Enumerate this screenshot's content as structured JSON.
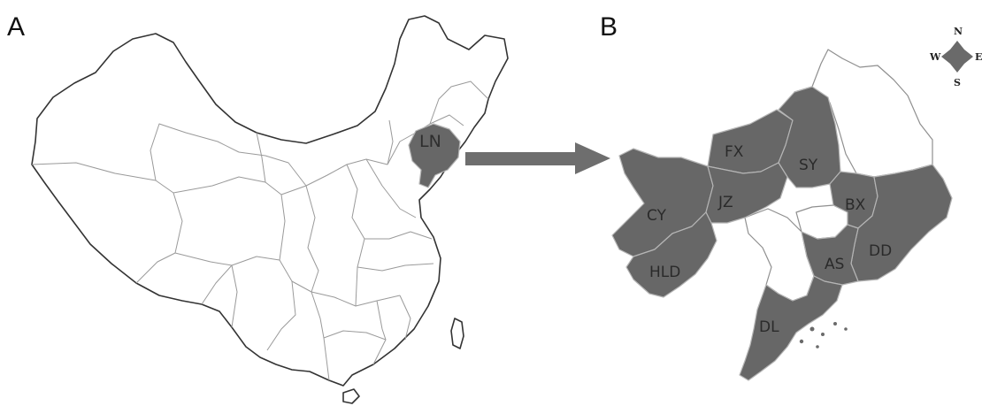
{
  "panels": {
    "a": {
      "letter": "A",
      "highlight_label": "LN"
    },
    "b": {
      "letter": "B"
    }
  },
  "regions": [
    {
      "code": "FX",
      "shaded": true
    },
    {
      "code": "SY",
      "shaded": true
    },
    {
      "code": "CY",
      "shaded": true
    },
    {
      "code": "JZ",
      "shaded": true
    },
    {
      "code": "BX",
      "shaded": true
    },
    {
      "code": "DD",
      "shaded": true
    },
    {
      "code": "HLD",
      "shaded": true
    },
    {
      "code": "AS",
      "shaded": true
    },
    {
      "code": "DL",
      "shaded": true
    }
  ],
  "compass": {
    "north": "N",
    "east": "E",
    "south": "S",
    "west": "W"
  },
  "colors": {
    "shaded": "#676767",
    "arrow": "#6e6e6e",
    "border": "#333333"
  }
}
